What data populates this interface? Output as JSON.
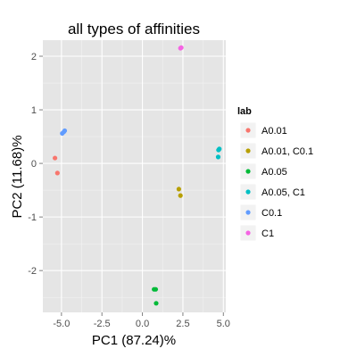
{
  "chart_data": {
    "type": "scatter",
    "title": "all types of affinities",
    "xlabel": "PC1 (87.24)%",
    "ylabel": "PC2 (11.68)%",
    "xlim": [
      -6.15,
      5.15
    ],
    "ylim": [
      -2.78,
      2.3
    ],
    "x_ticks": [
      -5.0,
      -2.5,
      0.0,
      2.5,
      5.0
    ],
    "x_tick_labels": [
      "-5.0",
      "-2.5",
      "0.0",
      "2.5",
      "5.0"
    ],
    "y_ticks": [
      -2,
      -1,
      0,
      1,
      2
    ],
    "y_tick_labels": [
      "-2",
      "-1",
      "0",
      "1",
      "2"
    ],
    "legend_title": "lab",
    "legend_position": "right",
    "series": [
      {
        "name": "A0.01",
        "color": "#F8766D",
        "points": [
          [
            -5.4,
            0.1
          ],
          [
            -5.25,
            -0.18
          ]
        ]
      },
      {
        "name": "A0.01, C0.1",
        "color": "#B79F00",
        "points": [
          [
            2.25,
            -0.48
          ],
          [
            2.35,
            -0.6
          ]
        ]
      },
      {
        "name": "A0.05",
        "color": "#00BA38",
        "points": [
          [
            0.72,
            -2.35
          ],
          [
            0.82,
            -2.35
          ],
          [
            0.85,
            -2.61
          ]
        ]
      },
      {
        "name": "A0.05, C1",
        "color": "#00BFC4",
        "points": [
          [
            4.7,
            0.25
          ],
          [
            4.75,
            0.27
          ],
          [
            4.68,
            0.12
          ]
        ]
      },
      {
        "name": "C0.1",
        "color": "#619CFF",
        "points": [
          [
            -4.95,
            0.56
          ],
          [
            -4.85,
            0.59
          ],
          [
            -4.8,
            0.61
          ]
        ]
      },
      {
        "name": "C1",
        "color": "#F564E3",
        "points": [
          [
            2.35,
            2.15
          ],
          [
            2.4,
            2.16
          ]
        ]
      }
    ]
  }
}
